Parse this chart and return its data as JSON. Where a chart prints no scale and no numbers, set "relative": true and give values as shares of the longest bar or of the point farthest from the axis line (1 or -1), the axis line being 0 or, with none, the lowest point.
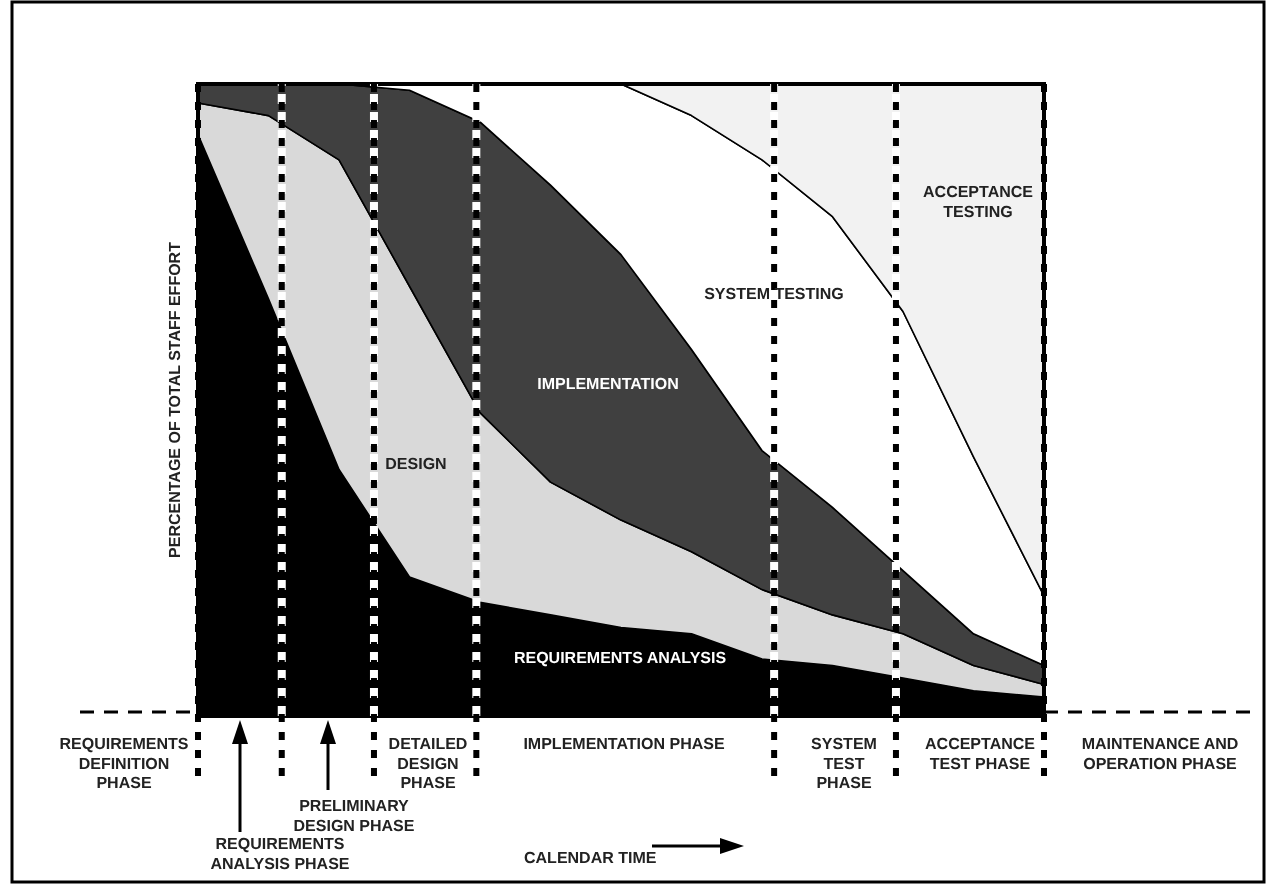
{
  "chart_data": {
    "type": "area",
    "stacked": true,
    "relative": true,
    "ylabel": "PERCENTAGE OF TOTAL STAFF EFFORT",
    "categories": [
      null,
      null,
      null,
      null,
      null,
      null,
      null,
      null,
      null,
      null,
      null,
      null,
      null
    ],
    "series": [
      {
        "name": "REQUIREMENTS ANALYSIS",
        "color": "#000000",
        "values": [
          0.92,
          0.66,
          0.39,
          0.22,
          0.18,
          0.16,
          0.14,
          0.13,
          0.09,
          0.08,
          0.06,
          0.04,
          0.03
        ]
      },
      {
        "name": "DESIGN",
        "color": "#d9d9d9",
        "values": [
          0.05,
          0.29,
          0.49,
          0.46,
          0.3,
          0.21,
          0.17,
          0.13,
          0.11,
          0.08,
          0.07,
          0.04,
          0.02
        ]
      },
      {
        "name": "IMPLEMENTATION",
        "color": "#404040",
        "values": [
          0.03,
          0.05,
          0.12,
          0.31,
          0.46,
          0.47,
          0.42,
          0.32,
          0.22,
          0.17,
          0.1,
          0.05,
          0.03
        ]
      },
      {
        "name": "SYSTEM TESTING",
        "color": "#ffffff",
        "values": [
          0,
          0,
          0,
          0.01,
          0.06,
          0.16,
          0.27,
          0.37,
          0.46,
          0.46,
          0.41,
          0.28,
          0.11
        ]
      },
      {
        "name": "ACCEPTANCE\nTESTING",
        "color": "#f2f2f2",
        "values": [
          0,
          0,
          0,
          0,
          0,
          0,
          0,
          0.05,
          0.12,
          0.21,
          0.36,
          0.59,
          0.81
        ]
      }
    ],
    "annotations": [
      "REQUIREMENTS\nDEFINITION\nPHASE",
      "REQUIREMENTS\nANALYSIS PHASE",
      "PRELIMINARY\nDESIGN PHASE",
      "DETAILED\nDESIGN\nPHASE",
      "IMPLEMENTATION PHASE",
      "SYSTEM\nTEST\nPHASE",
      "ACCEPTANCE\nTEST PHASE",
      "MAINTENANCE AND\nOPERATION PHASE",
      "CALENDAR TIME"
    ]
  }
}
